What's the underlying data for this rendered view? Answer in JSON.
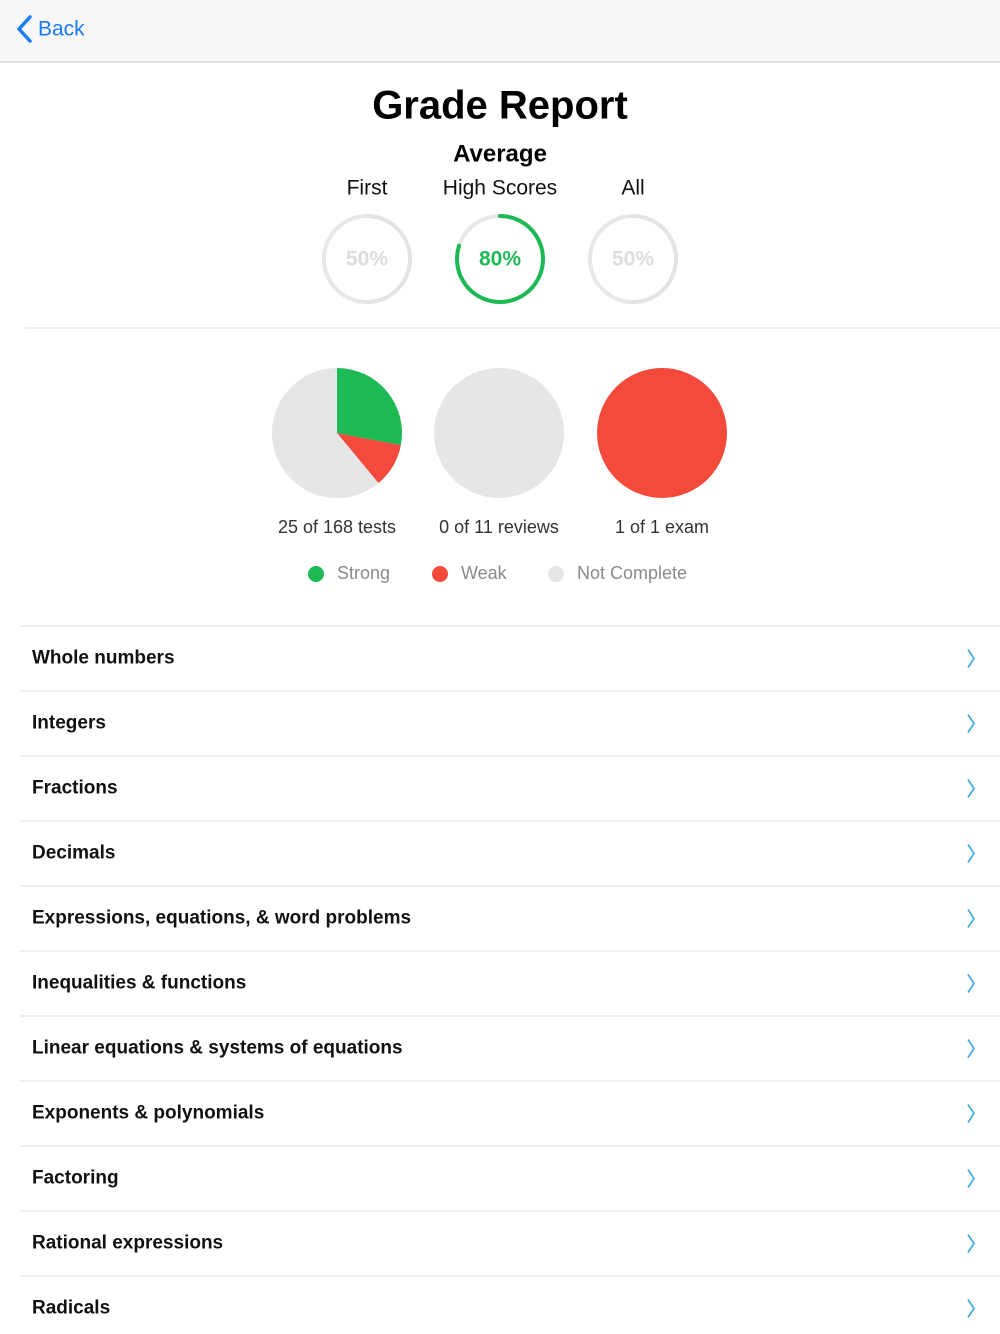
{
  "nav": {
    "back": "Back"
  },
  "header": {
    "title": "Grade Report",
    "subtitle": "Average"
  },
  "chart_data": [
    {
      "type": "ring",
      "categories": [
        "First",
        "High Scores",
        "All"
      ],
      "values": [
        50,
        80,
        50
      ],
      "value_labels": [
        "50%",
        "80%",
        "50%"
      ],
      "colors": [
        "#e4e4e4",
        "#1db954",
        "#e4e4e4"
      ],
      "label_colors": [
        "#dddddd",
        "#1db954",
        "#dddddd"
      ],
      "ylim": [
        0,
        100
      ]
    },
    {
      "type": "pie",
      "series": [
        {
          "name": "Strong",
          "color": "#1db954"
        },
        {
          "name": "Weak",
          "color": "#f44a3c"
        },
        {
          "name": "Not Complete",
          "color": "#e6e6e8"
        }
      ],
      "pies": [
        {
          "caption": "25 of 168 tests",
          "values": [
            28,
            11,
            61
          ]
        },
        {
          "caption": "0 of 11 reviews",
          "values": [
            0,
            0,
            100
          ]
        },
        {
          "caption": "1 of 1 exam",
          "values": [
            0,
            100,
            0
          ]
        }
      ]
    }
  ],
  "list": [
    "Whole numbers",
    "Integers",
    "Fractions",
    "Decimals",
    "Expressions, equations, & word problems",
    "Inequalities & functions",
    "Linear equations & systems of equations",
    "Exponents & polynomials",
    "Factoring",
    "Rational expressions",
    "Radicals"
  ]
}
